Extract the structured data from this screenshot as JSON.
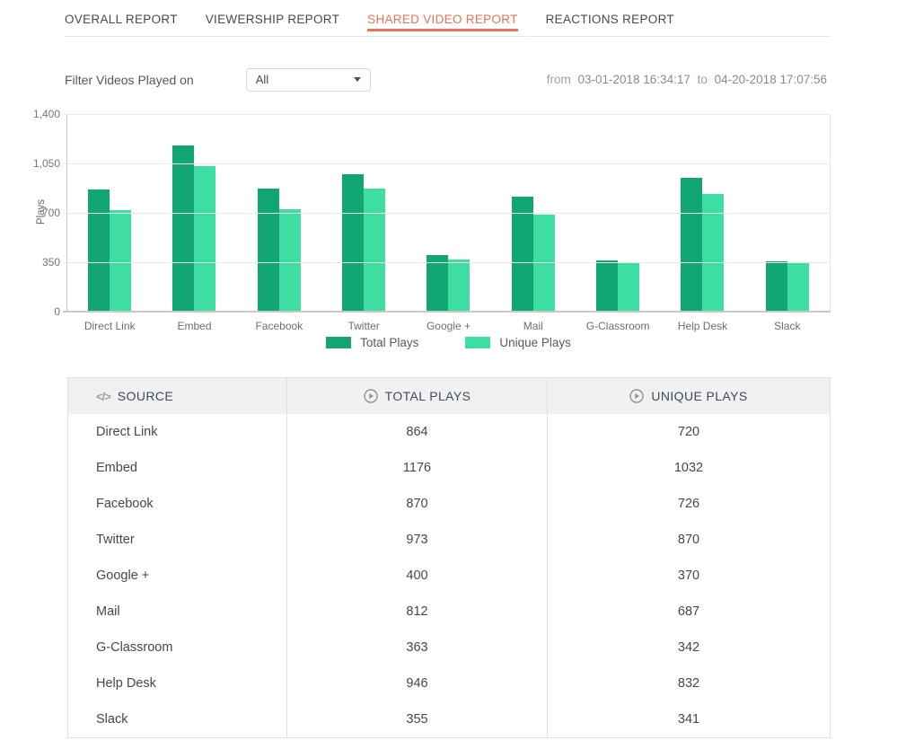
{
  "tabs": [
    {
      "label": "OVERALL REPORT",
      "active": false
    },
    {
      "label": "VIEWERSHIP REPORT",
      "active": false
    },
    {
      "label": "SHARED VIDEO REPORT",
      "active": true
    },
    {
      "label": "REACTIONS REPORT",
      "active": false
    }
  ],
  "filter": {
    "label": "Filter Videos Played on",
    "dropdown_value": "All"
  },
  "date_range": {
    "from_label": "from",
    "from_value": "03-01-2018 16:34:17",
    "to_label": "to",
    "to_value": "04-20-2018 17:07:56"
  },
  "chart_data": {
    "type": "bar",
    "title": "",
    "categories": [
      "Direct Link",
      "Embed",
      "Facebook",
      "Twitter",
      "Google +",
      "Mail",
      "G-Classroom",
      "Help Desk",
      "Slack"
    ],
    "series": [
      {
        "name": "Total Plays",
        "color": "#12a674",
        "values": [
          864,
          1176,
          870,
          973,
          400,
          812,
          363,
          946,
          355
        ]
      },
      {
        "name": "Unique Plays",
        "color": "#3edda1",
        "values": [
          720,
          1032,
          726,
          870,
          370,
          687,
          342,
          832,
          341
        ]
      }
    ],
    "xlabel": "",
    "ylabel": "Plays",
    "ylim": [
      0,
      1400
    ],
    "yticks": [
      "0",
      "350",
      "700",
      "1,050",
      "1,400"
    ],
    "grid": true,
    "legend_position": "bottom"
  },
  "table": {
    "columns": [
      {
        "label": "SOURCE",
        "icon": "code-icon",
        "glyph": "</>"
      },
      {
        "label": "TOTAL PLAYS",
        "icon": "play-circle-icon"
      },
      {
        "label": "UNIQUE PLAYS",
        "icon": "play-circle-icon"
      }
    ],
    "rows": [
      [
        "Direct Link",
        "864",
        "720"
      ],
      [
        "Embed",
        "1176",
        "1032"
      ],
      [
        "Facebook",
        "870",
        "726"
      ],
      [
        "Twitter",
        "973",
        "870"
      ],
      [
        "Google +",
        "400",
        "370"
      ],
      [
        "Mail",
        "812",
        "687"
      ],
      [
        "G-Classroom",
        "363",
        "342"
      ],
      [
        "Help Desk",
        "946",
        "832"
      ],
      [
        "Slack",
        "355",
        "341"
      ]
    ]
  },
  "colors": {
    "accent": "#ec7257",
    "total_plays": "#12a674",
    "unique_plays": "#3edda1",
    "header_bg": "#f1f1f2",
    "table_border": "#dee0e2"
  }
}
